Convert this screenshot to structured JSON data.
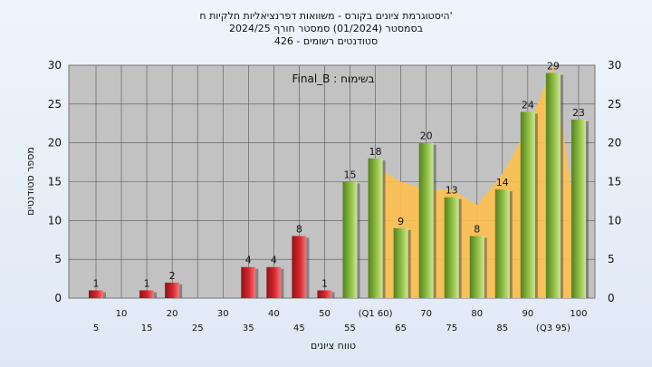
{
  "chart_data": {
    "type": "bar",
    "title_lines": [
      "'היסטוגרמת ציונים בקורס - משוואות דפרנציאליות חלקיות ח",
      "בסמסטר  (01/2024)  סמסטר חורף 2024/25",
      "סטודנטים רשומים - 426"
    ],
    "annotation": "בשימוח : Final_B",
    "xlabel": "טווח ציונים",
    "ylabel": "מספר סטודנטים",
    "ylim": [
      0,
      30
    ],
    "yticks": [
      0,
      5,
      10,
      15,
      20,
      25,
      30
    ],
    "categories": [
      "5",
      "10",
      "15",
      "20",
      "25",
      "30",
      "35",
      "40",
      "45",
      "50",
      "55",
      "(Q1 60)",
      "65",
      "70",
      "75",
      "80",
      "85",
      "90",
      "(Q3 95)",
      "100"
    ],
    "values": [
      1,
      0,
      1,
      2,
      0,
      0,
      4,
      4,
      8,
      1,
      15,
      18,
      9,
      20,
      13,
      8,
      14,
      24,
      29,
      23
    ],
    "labeled": [
      true,
      false,
      true,
      true,
      false,
      false,
      true,
      true,
      true,
      true,
      true,
      true,
      true,
      true,
      true,
      true,
      true,
      true,
      true,
      true
    ],
    "pass_threshold_index": 10,
    "area_values": [
      null,
      null,
      null,
      null,
      null,
      null,
      null,
      null,
      null,
      null,
      null,
      17,
      15,
      14,
      14,
      12,
      16,
      22,
      30,
      8
    ],
    "grid": true,
    "colors": {
      "fail_bar": "#d8282e",
      "pass_bar": "#8fc043",
      "area": "#fdc04f",
      "plot_bg": "#c2c2c2",
      "gridline": "#555555"
    }
  }
}
